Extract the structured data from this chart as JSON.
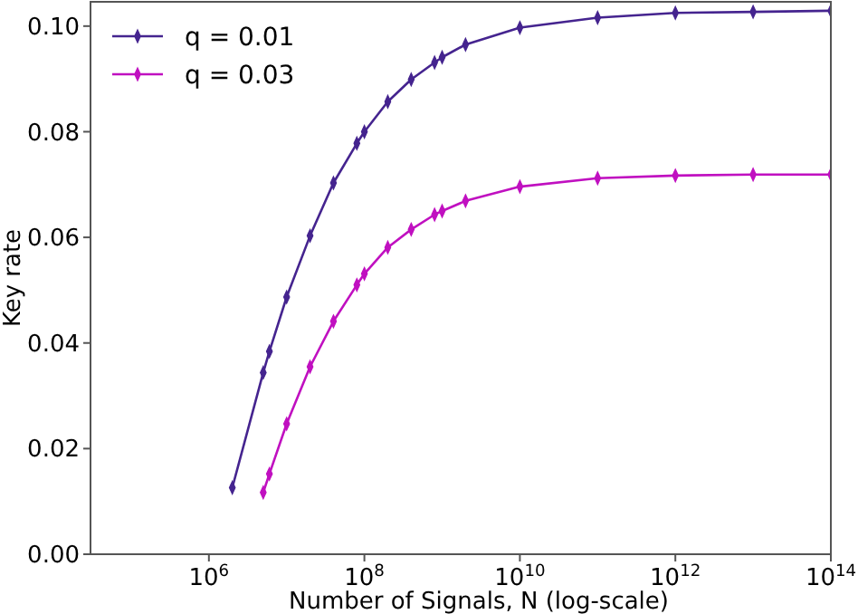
{
  "chart_data": {
    "type": "line",
    "xlabel": "Number of Signals, N (log-scale)",
    "ylabel": "Key rate",
    "log": "x",
    "x": [
      2000000,
      5000000,
      6000000,
      10000000,
      20000000,
      40000000,
      80000000,
      100000000,
      200000000,
      400000000,
      800000000,
      1000000000,
      2000000000,
      10000000000,
      100000000000,
      1000000000000,
      10000000000000,
      100000000000000
    ],
    "series": [
      {
        "name": "q = 0.01",
        "color": "#45248f",
        "values": [
          0.0126,
          0.0344,
          0.0384,
          0.0487,
          0.0603,
          0.0703,
          0.0778,
          0.08,
          0.0857,
          0.0899,
          0.0931,
          0.0941,
          0.0965,
          0.0997,
          0.1016,
          0.1025,
          0.1027,
          0.1029
        ]
      },
      {
        "name": "q = 0.03",
        "color": "#c010c0",
        "values": [
          null,
          0.0117,
          0.0152,
          0.0247,
          0.0355,
          0.0441,
          0.051,
          0.0531,
          0.0581,
          0.0615,
          0.0643,
          0.065,
          0.0669,
          0.0696,
          0.0712,
          0.0717,
          0.0719,
          0.0719
        ]
      }
    ],
    "xlim": [
      30000,
      100000000000000
    ],
    "xticks": [
      {
        "value": 1000000,
        "label": "10$^{6}$"
      },
      {
        "value": 100000000,
        "label": "10$^{8}$"
      },
      {
        "value": 10000000000,
        "label": "10$^{10}$"
      },
      {
        "value": 1000000000000,
        "label": "10$^{12}$"
      },
      {
        "value": 100000000000000,
        "label": "10$^{14}$"
      }
    ],
    "ylim": [
      0,
      0.1046
    ],
    "yticks": [
      {
        "value": 0,
        "label": "0.00"
      },
      {
        "value": 0.02,
        "label": "0.02"
      },
      {
        "value": 0.04,
        "label": "0.04"
      },
      {
        "value": 0.06,
        "label": "0.06"
      },
      {
        "value": 0.08,
        "label": "0.08"
      },
      {
        "value": 0.1,
        "label": "0.10"
      }
    ],
    "legend": "top left",
    "marker": "diamond",
    "line_style": "solid",
    "grid": false
  }
}
